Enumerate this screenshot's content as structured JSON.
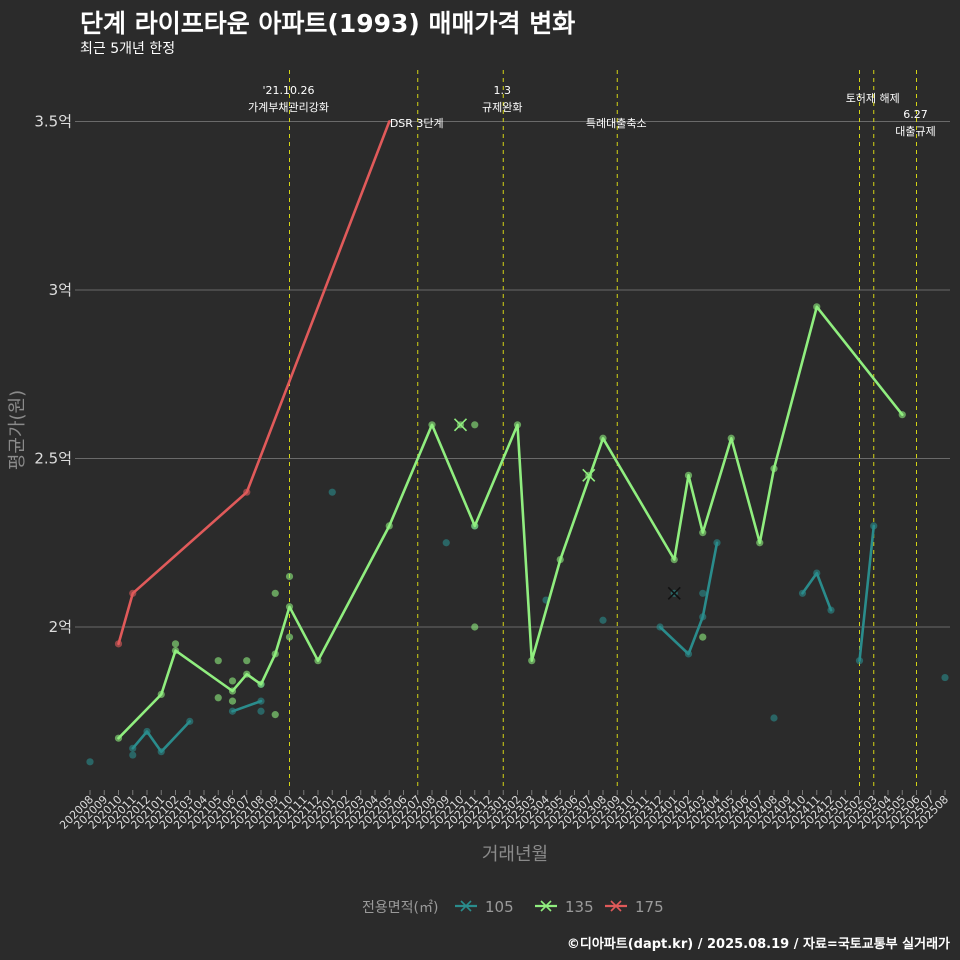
{
  "chart_data": {
    "type": "line",
    "title": "단계 라이프타운 아파트(1993) 매매가격 변화",
    "subtitle": "최근 5개년 한정",
    "xlabel": "거래년월",
    "ylabel": "평균가(원)",
    "caption": "©디아파트(dapt.kr) / 2025.08.19 / 자료=국토교통부 실거래가",
    "ylim": [
      1.5,
      3.65
    ],
    "y_ticks": [
      {
        "value": 2.0,
        "label": "2억"
      },
      {
        "value": 2.5,
        "label": "2.5억"
      },
      {
        "value": 3.0,
        "label": "3억"
      },
      {
        "value": 3.5,
        "label": "3.5억"
      }
    ],
    "x_months": [
      "202008",
      "202009",
      "202010",
      "202011",
      "202012",
      "202101",
      "202102",
      "202103",
      "202104",
      "202105",
      "202106",
      "202107",
      "202108",
      "202109",
      "202110",
      "202111",
      "202112",
      "202201",
      "202202",
      "202203",
      "202204",
      "202205",
      "202206",
      "202207",
      "202208",
      "202209",
      "202210",
      "202211",
      "202212",
      "202301",
      "202302",
      "202303",
      "202304",
      "202305",
      "202306",
      "202307",
      "202308",
      "202309",
      "202310",
      "202311",
      "202312",
      "202401",
      "202402",
      "202403",
      "202404",
      "202405",
      "202406",
      "202407",
      "202408",
      "202409",
      "202410",
      "202411",
      "202412",
      "202501",
      "202502",
      "202503",
      "202504",
      "202505",
      "202506",
      "202507",
      "202508"
    ],
    "legend": {
      "title": "전용면적(㎡)",
      "position": "bottom"
    },
    "series": [
      {
        "name": "105",
        "color": "#2a8c8c",
        "line_segments": [
          [
            [
              "202011",
              1.64
            ],
            [
              "202012",
              1.69
            ],
            [
              "202101",
              1.63
            ],
            [
              "202103",
              1.72
            ]
          ],
          [
            [
              "202106",
              1.75
            ],
            [
              "202108",
              1.78
            ]
          ],
          [
            [
              "202312",
              2.0
            ],
            [
              "202402",
              1.92
            ],
            [
              "202403",
              2.03
            ],
            [
              "202404",
              2.25
            ]
          ],
          [
            [
              "202410",
              2.1
            ],
            [
              "202411",
              2.16
            ],
            [
              "202412",
              2.05
            ]
          ],
          [
            [
              "202502",
              1.9
            ],
            [
              "202503",
              2.3
            ]
          ]
        ],
        "points": [
          [
            "202008",
            1.6
          ],
          [
            "202011",
            1.62
          ],
          [
            "202011",
            1.64
          ],
          [
            "202012",
            1.69
          ],
          [
            "202101",
            1.63
          ],
          [
            "202103",
            1.72
          ],
          [
            "202106",
            1.75
          ],
          [
            "202108",
            1.78
          ],
          [
            "202108",
            1.75
          ],
          [
            "202108",
            1.83
          ],
          [
            "202201",
            2.4
          ],
          [
            "202209",
            2.25
          ],
          [
            "202211",
            2.3
          ],
          [
            "202304",
            2.08
          ],
          [
            "202308",
            2.02
          ],
          [
            "202312",
            2.0
          ],
          [
            "202402",
            1.92
          ],
          [
            "202403",
            2.03
          ],
          [
            "202403",
            2.1
          ],
          [
            "202404",
            2.25
          ],
          [
            "202408",
            1.73
          ],
          [
            "202410",
            2.1
          ],
          [
            "202411",
            2.16
          ],
          [
            "202412",
            2.05
          ],
          [
            "202502",
            1.9
          ],
          [
            "202503",
            2.3
          ],
          [
            "202508",
            1.85
          ]
        ],
        "cancelled": [
          [
            "202401",
            2.1
          ]
        ]
      },
      {
        "name": "135",
        "color": "#90ee7f",
        "line_segments": [
          [
            [
              "202010",
              1.67
            ],
            [
              "202101",
              1.8
            ],
            [
              "202102",
              1.93
            ],
            [
              "202106",
              1.81
            ],
            [
              "202107",
              1.86
            ],
            [
              "202108",
              1.83
            ],
            [
              "202109",
              1.92
            ],
            [
              "202110",
              2.06
            ],
            [
              "202112",
              1.9
            ],
            [
              "202205",
              2.3
            ],
            [
              "202208",
              2.6
            ],
            [
              "202211",
              2.3
            ],
            [
              "202302",
              2.6
            ],
            [
              "202303",
              1.9
            ],
            [
              "202305",
              2.2
            ],
            [
              "202308",
              2.56
            ],
            [
              "202401",
              2.2
            ],
            [
              "202402",
              2.45
            ],
            [
              "202403",
              2.28
            ],
            [
              "202405",
              2.56
            ],
            [
              "202407",
              2.25
            ],
            [
              "202408",
              2.47
            ],
            [
              "202411",
              2.95
            ],
            [
              "202505",
              2.63
            ]
          ]
        ],
        "points": [
          [
            "202010",
            1.67
          ],
          [
            "202101",
            1.8
          ],
          [
            "202102",
            1.95
          ],
          [
            "202102",
            1.93
          ],
          [
            "202105",
            1.9
          ],
          [
            "202105",
            1.79
          ],
          [
            "202106",
            1.84
          ],
          [
            "202106",
            1.78
          ],
          [
            "202106",
            1.81
          ],
          [
            "202107",
            1.9
          ],
          [
            "202107",
            1.86
          ],
          [
            "202108",
            1.83
          ],
          [
            "202109",
            2.1
          ],
          [
            "202109",
            1.74
          ],
          [
            "202109",
            1.92
          ],
          [
            "202110",
            2.15
          ],
          [
            "202110",
            1.97
          ],
          [
            "202110",
            2.06
          ],
          [
            "202112",
            1.9
          ],
          [
            "202205",
            2.3
          ],
          [
            "202208",
            2.6
          ],
          [
            "202211",
            2.6
          ],
          [
            "202211",
            2.0
          ],
          [
            "202211",
            2.3
          ],
          [
            "202302",
            2.6
          ],
          [
            "202303",
            1.9
          ],
          [
            "202305",
            2.2
          ],
          [
            "202308",
            2.56
          ],
          [
            "202401",
            2.2
          ],
          [
            "202402",
            2.45
          ],
          [
            "202403",
            2.28
          ],
          [
            "202403",
            1.97
          ],
          [
            "202405",
            2.56
          ],
          [
            "202407",
            2.25
          ],
          [
            "202408",
            2.47
          ],
          [
            "202411",
            2.95
          ],
          [
            "202505",
            2.63
          ]
        ],
        "cancelled": [
          [
            "202210",
            2.6
          ],
          [
            "202307",
            2.45
          ]
        ]
      },
      {
        "name": "175",
        "color": "#e05a5a",
        "line_segments": [
          [
            [
              "202010",
              1.95
            ],
            [
              "202011",
              2.1
            ],
            [
              "202107",
              2.4
            ],
            [
              "202205",
              3.5
            ]
          ]
        ],
        "points": [
          [
            "202010",
            1.95
          ],
          [
            "202011",
            2.1
          ],
          [
            "202107",
            2.4
          ]
        ],
        "cancelled": []
      }
    ],
    "events": [
      {
        "month": "202110",
        "lines": [
          "'21.10.26",
          "가계부채관리강화"
        ]
      },
      {
        "month": "202207",
        "lines": [
          "DSR 3단계"
        ]
      },
      {
        "month": "202301",
        "lines": [
          "1.3",
          "규제완화"
        ]
      },
      {
        "month": "202309",
        "lines": [
          "특례대출축소"
        ]
      },
      {
        "month": "202502",
        "lines": [
          ""
        ]
      },
      {
        "month": "202503",
        "lines": [
          "토허제 해제"
        ]
      },
      {
        "month": "202506",
        "lines": [
          "6.27",
          "대출규제"
        ]
      }
    ]
  }
}
